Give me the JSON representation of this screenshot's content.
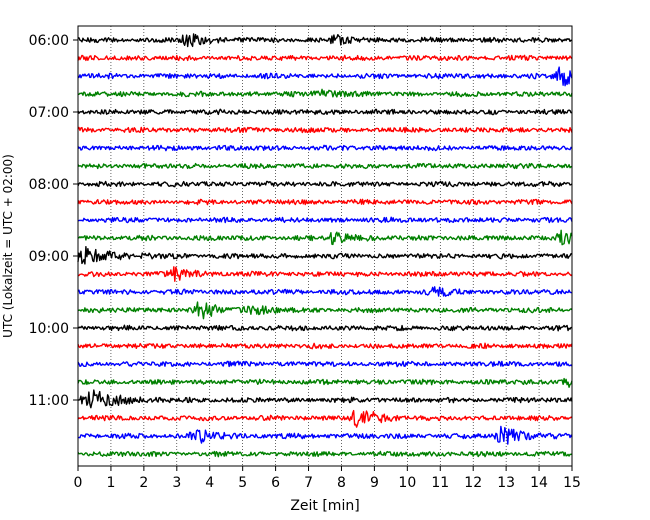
{
  "chart_data": {
    "type": "line",
    "title": "",
    "xlabel": "Zeit  [min]",
    "ylabel": "UTC (Lokalzeit = UTC + 02:00)",
    "xlim": [
      0,
      15
    ],
    "xticks": [
      "0",
      "1",
      "2",
      "3",
      "4",
      "5",
      "6",
      "7",
      "8",
      "9",
      "10",
      "11",
      "12",
      "13",
      "14",
      "15"
    ],
    "yticks": [
      "06:00",
      "07:00",
      "08:00",
      "09:00",
      "10:00",
      "11:00"
    ],
    "trace_colors": [
      "#000000",
      "#ff0000",
      "#0000ff",
      "#008000"
    ],
    "grid": "vertical dotted",
    "trace_interval_min": 15,
    "traces": [
      {
        "start": "06:00",
        "color": "#000000",
        "events": [
          {
            "t": 3.3,
            "amp": 2.2
          },
          {
            "t": 7.8,
            "amp": 1.5
          }
        ]
      },
      {
        "start": "06:15",
        "color": "#ff0000",
        "events": []
      },
      {
        "start": "06:30",
        "color": "#0000ff",
        "events": [
          {
            "t": 14.7,
            "amp": 3.2
          }
        ]
      },
      {
        "start": "06:45",
        "color": "#008000",
        "events": [
          {
            "t": 7.3,
            "amp": 1.3
          }
        ]
      },
      {
        "start": "07:00",
        "color": "#000000",
        "events": []
      },
      {
        "start": "07:15",
        "color": "#ff0000",
        "events": []
      },
      {
        "start": "07:30",
        "color": "#0000ff",
        "events": []
      },
      {
        "start": "07:45",
        "color": "#008000",
        "events": []
      },
      {
        "start": "08:00",
        "color": "#000000",
        "events": []
      },
      {
        "start": "08:15",
        "color": "#ff0000",
        "events": []
      },
      {
        "start": "08:30",
        "color": "#0000ff",
        "events": []
      },
      {
        "start": "08:45",
        "color": "#008000",
        "events": [
          {
            "t": 7.8,
            "amp": 2.0
          },
          {
            "t": 14.7,
            "amp": 2.0
          }
        ]
      },
      {
        "start": "09:00",
        "color": "#000000",
        "events": [
          {
            "t": 0.2,
            "amp": 2.6
          }
        ]
      },
      {
        "start": "09:15",
        "color": "#ff0000",
        "events": [
          {
            "t": 2.9,
            "amp": 2.0
          }
        ]
      },
      {
        "start": "09:30",
        "color": "#0000ff",
        "events": [
          {
            "t": 10.8,
            "amp": 1.3
          }
        ]
      },
      {
        "start": "09:45",
        "color": "#008000",
        "events": [
          {
            "t": 3.7,
            "amp": 2.6
          },
          {
            "t": 5.2,
            "amp": 1.3
          }
        ]
      },
      {
        "start": "10:00",
        "color": "#000000",
        "events": []
      },
      {
        "start": "10:15",
        "color": "#ff0000",
        "events": []
      },
      {
        "start": "10:30",
        "color": "#0000ff",
        "events": []
      },
      {
        "start": "10:45",
        "color": "#008000",
        "events": [
          {
            "t": 14.9,
            "amp": 1.3
          }
        ]
      },
      {
        "start": "11:00",
        "color": "#000000",
        "events": [
          {
            "t": 0.4,
            "amp": 3.0
          }
        ]
      },
      {
        "start": "11:15",
        "color": "#ff0000",
        "events": [
          {
            "t": 8.5,
            "amp": 3.3
          }
        ]
      },
      {
        "start": "11:30",
        "color": "#0000ff",
        "events": [
          {
            "t": 3.6,
            "amp": 2.4
          },
          {
            "t": 12.9,
            "amp": 3.0
          }
        ]
      },
      {
        "start": "11:45",
        "color": "#008000",
        "events": []
      }
    ]
  }
}
